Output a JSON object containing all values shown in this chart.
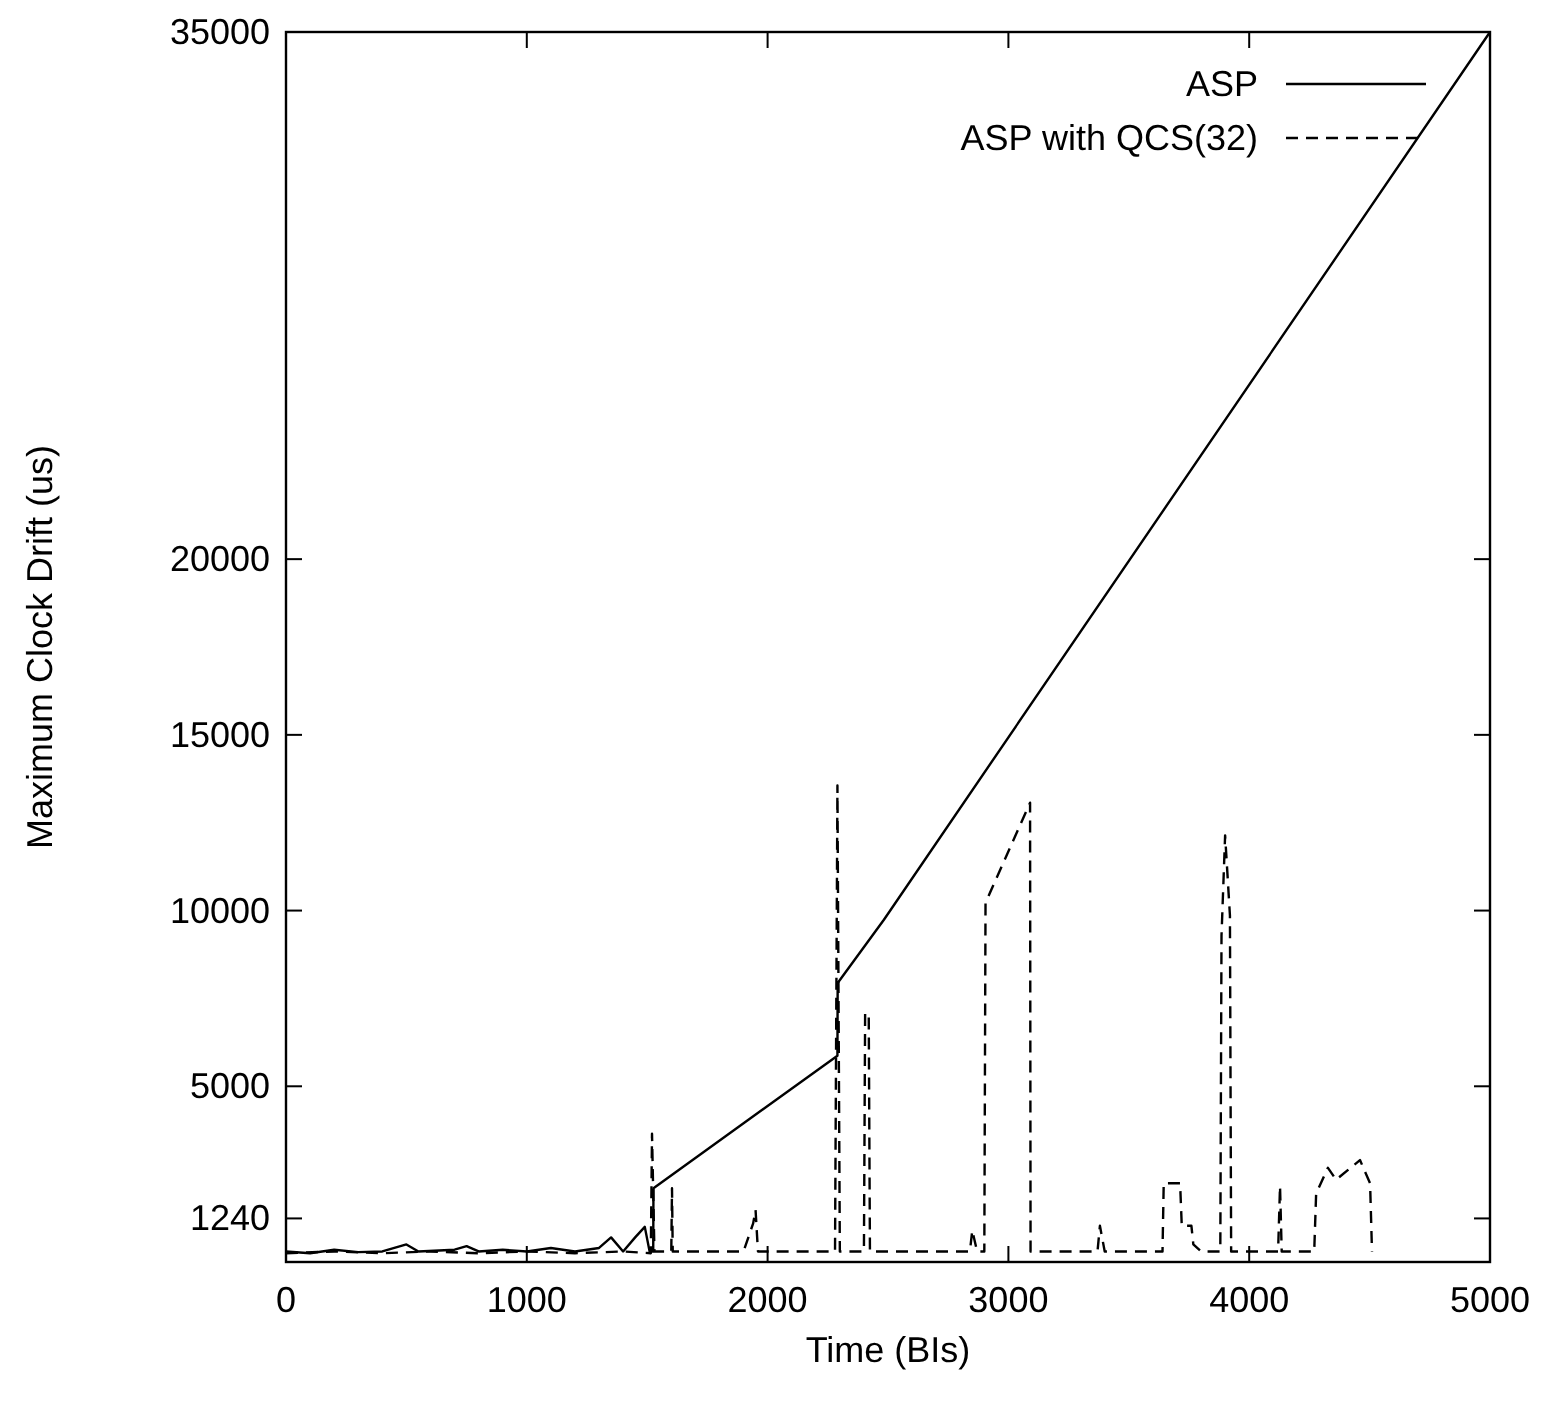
{
  "chart_data": {
    "type": "line",
    "xlabel": "Time (BIs)",
    "ylabel": "Maximum Clock Drift (us)",
    "xlim": [
      0,
      5000
    ],
    "ylim": [
      0,
      35000
    ],
    "xticks": [
      0,
      1000,
      2000,
      3000,
      4000,
      5000
    ],
    "yticks": [
      1240,
      5000,
      10000,
      15000,
      20000,
      35000
    ],
    "legend": "top right",
    "marker": "none",
    "series": [
      {
        "name": "ASP",
        "color": "#000000",
        "line_style": "solid",
        "x": [
          0,
          100,
          200,
          300,
          400,
          500,
          550,
          700,
          750,
          800,
          900,
          1000,
          1100,
          1200,
          1300,
          1350,
          1400,
          1450,
          1490,
          1510,
          1525,
          1526,
          2290,
          2291,
          2483,
          5000
        ],
        "values": [
          300,
          250,
          350,
          280,
          300,
          500,
          300,
          350,
          450,
          300,
          350,
          300,
          400,
          300,
          400,
          700,
          300,
          700,
          1000,
          300,
          300,
          2100,
          5870,
          7940,
          9740,
          35000
        ]
      },
      {
        "name": "ASP with QCS(32)",
        "color": "#000000",
        "line_style": "dashed",
        "x": [
          0,
          200,
          400,
          600,
          800,
          1000,
          1200,
          1400,
          1515,
          1520,
          1530,
          1600,
          1603,
          1606,
          1900,
          1940,
          1950,
          1960,
          2280,
          2290,
          2300,
          2400,
          2405,
          2420,
          2425,
          2840,
          2850,
          2870,
          2900,
          2905,
          3090,
          3092,
          3370,
          3380,
          3400,
          3640,
          3645,
          3713,
          3720,
          3760,
          3768,
          3800,
          3880,
          3885,
          3900,
          3920,
          3925,
          4120,
          4128,
          4135,
          4270,
          4278,
          4327,
          4361,
          4460,
          4502,
          4510
        ],
        "values": [
          250,
          300,
          250,
          300,
          250,
          300,
          250,
          300,
          250,
          3650,
          300,
          300,
          2100,
          300,
          300,
          1100,
          1480,
          300,
          300,
          13560,
          300,
          300,
          7070,
          7070,
          300,
          300,
          900,
          300,
          300,
          10220,
          13070,
          300,
          300,
          1030,
          300,
          300,
          2240,
          2240,
          1030,
          1030,
          500,
          300,
          300,
          9290,
          12140,
          9860,
          300,
          300,
          2160,
          300,
          300,
          1950,
          2680,
          2340,
          2900,
          2240,
          300
        ]
      }
    ]
  }
}
